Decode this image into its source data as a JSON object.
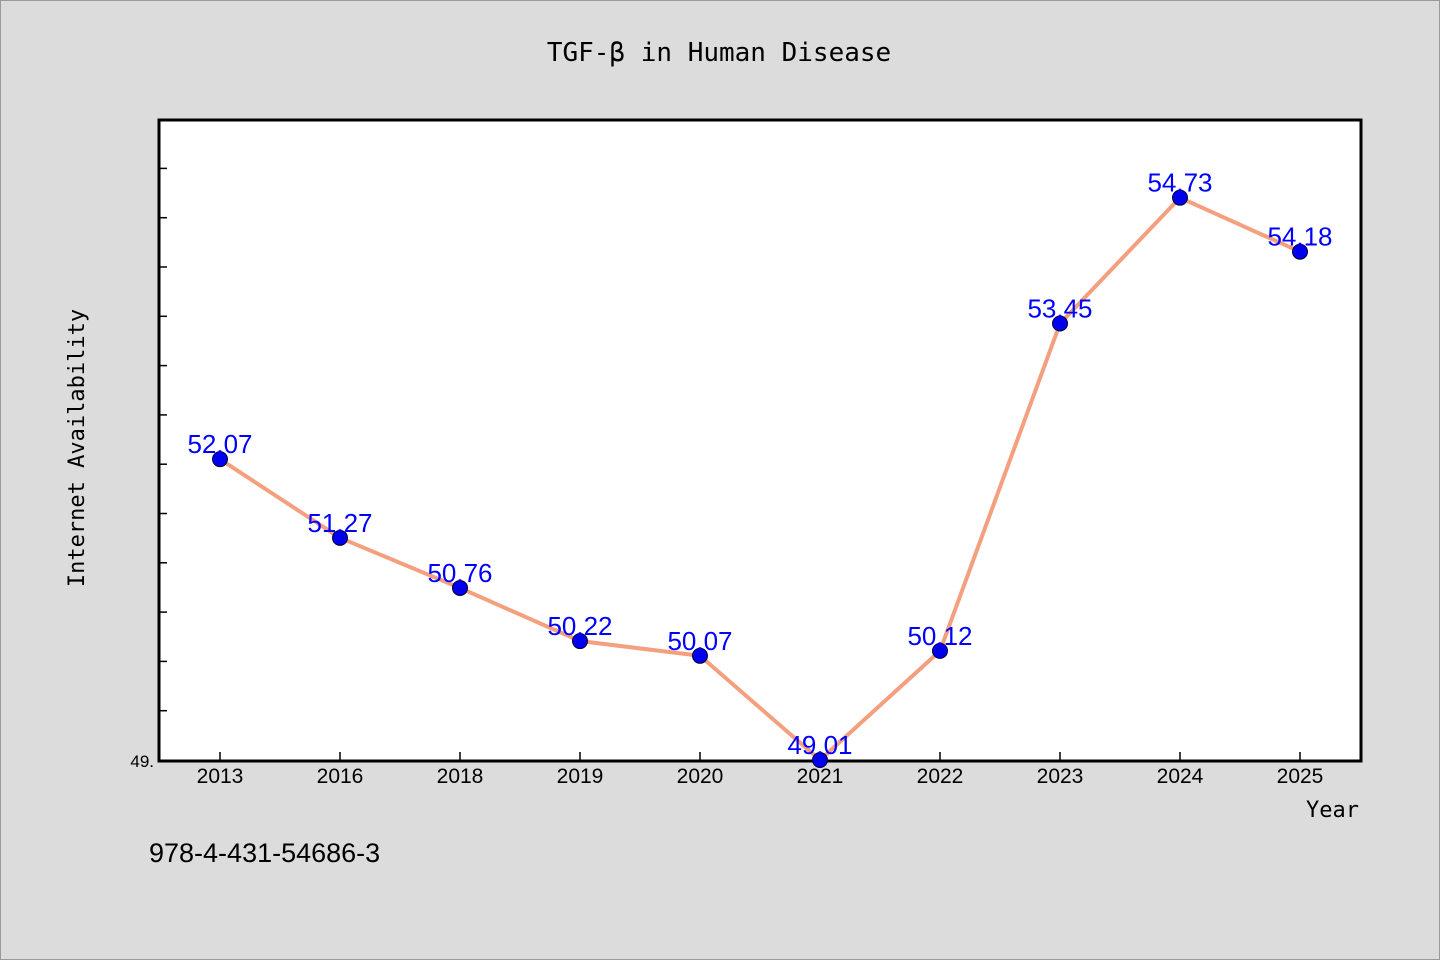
{
  "chart_data": {
    "type": "line",
    "title": "TGF-β in Human Disease",
    "xlabel": "Year",
    "ylabel": "Internet Availability",
    "categories": [
      "2013",
      "2016",
      "2018",
      "2019",
      "2020",
      "2021",
      "2022",
      "2023",
      "2024",
      "2025"
    ],
    "values": [
      52.07,
      51.27,
      50.76,
      50.22,
      50.07,
      49.01,
      50.12,
      53.45,
      54.73,
      54.18
    ],
    "data_labels": [
      "52.07",
      "51.27",
      "50.76",
      "50.22",
      "50.07",
      "49.01",
      "50.12",
      "53.45",
      "54.73",
      "54.18"
    ],
    "ylim": [
      49.01,
      55.52
    ],
    "y_tick_label": "49.",
    "grid": false,
    "line_color": "#f4a07f",
    "marker_color": "#0000ee",
    "label_color": "#0000ff"
  },
  "footer": {
    "isbn": "978-4-431-54686-3"
  }
}
